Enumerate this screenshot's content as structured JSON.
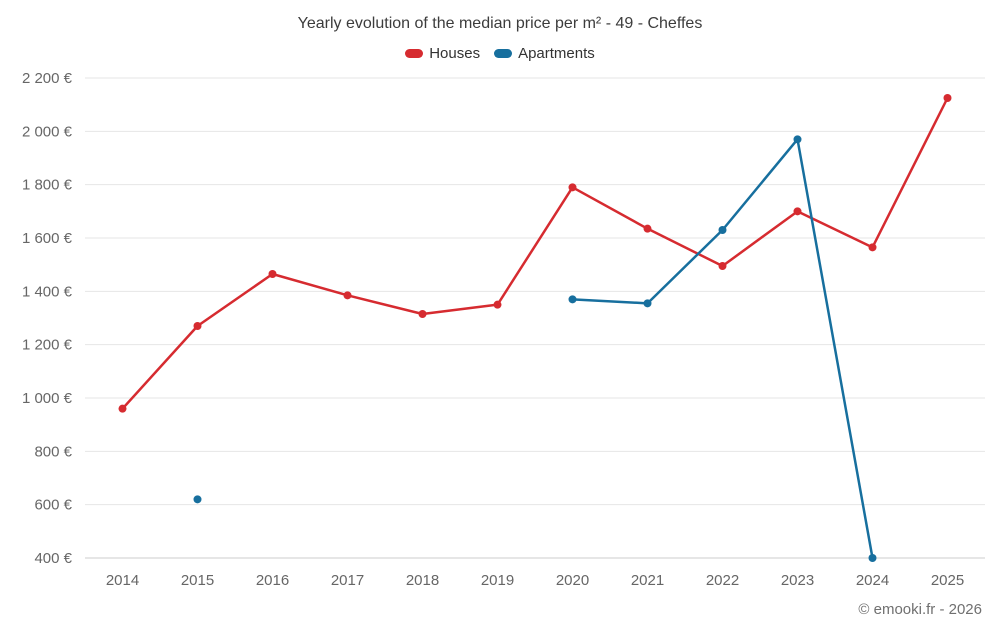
{
  "chart_data": {
    "type": "line",
    "title": "Yearly evolution of the median price per m² - 49 - Cheffes",
    "x": [
      2014,
      2015,
      2016,
      2017,
      2018,
      2019,
      2020,
      2021,
      2022,
      2023,
      2024,
      2025
    ],
    "series": [
      {
        "name": "Houses",
        "color": "#d62b30",
        "values": [
          960,
          1270,
          1465,
          1385,
          1315,
          1350,
          1790,
          1635,
          1495,
          1700,
          1565,
          2125
        ]
      },
      {
        "name": "Apartments",
        "color": "#176f9e",
        "values": [
          null,
          620,
          null,
          null,
          null,
          null,
          1370,
          1355,
          1630,
          1970,
          400,
          null
        ]
      }
    ],
    "xlabel": "",
    "ylabel": "",
    "ylim": [
      400,
      2200
    ],
    "ytick_step": 200,
    "y_suffix": " €",
    "grid": "horizontal",
    "legend_position": "top",
    "colors": {
      "gridline": "#e6e6e6",
      "axis_line": "#cccccc",
      "axis_text": "#666666",
      "title_text": "#3c3c3c"
    }
  },
  "footer": {
    "credit": "© emooki.fr - 2026"
  }
}
